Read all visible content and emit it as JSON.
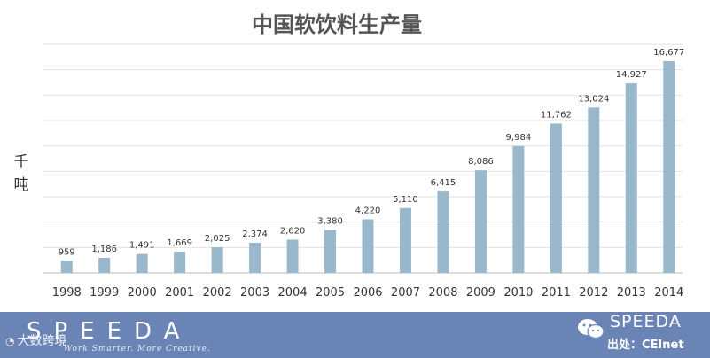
{
  "chart_data": {
    "type": "bar",
    "title": "中国软饮料生产量",
    "ylabel": "千吨",
    "xlabel": "",
    "categories": [
      "1998",
      "1999",
      "2000",
      "2001",
      "2002",
      "2003",
      "2004",
      "2005",
      "2006",
      "2007",
      "2008",
      "2009",
      "2010",
      "2011",
      "2012",
      "2013",
      "2014"
    ],
    "values": [
      959,
      1186,
      1491,
      1669,
      2025,
      2374,
      2620,
      3380,
      4220,
      5110,
      6415,
      8086,
      9984,
      11762,
      13024,
      14927,
      16677
    ],
    "value_labels": [
      "959",
      "1,186",
      "1,491",
      "1,669",
      "2,025",
      "2,374",
      "2,620",
      "3,380",
      "4,220",
      "5,110",
      "6,415",
      "8,086",
      "9,984",
      "11,762",
      "13,024",
      "14,927",
      "16,677"
    ],
    "ylim": [
      0,
      18000
    ],
    "grid": true,
    "bar_color": "#9ab8cc"
  },
  "footer": {
    "brand": "SPEEDA",
    "tagline": "Work Smarter. More Creative.",
    "watermark": "大数跨境",
    "brand_right": "SPEEDA",
    "source": "出处：CEInet",
    "background_color": "#6a85b5"
  }
}
